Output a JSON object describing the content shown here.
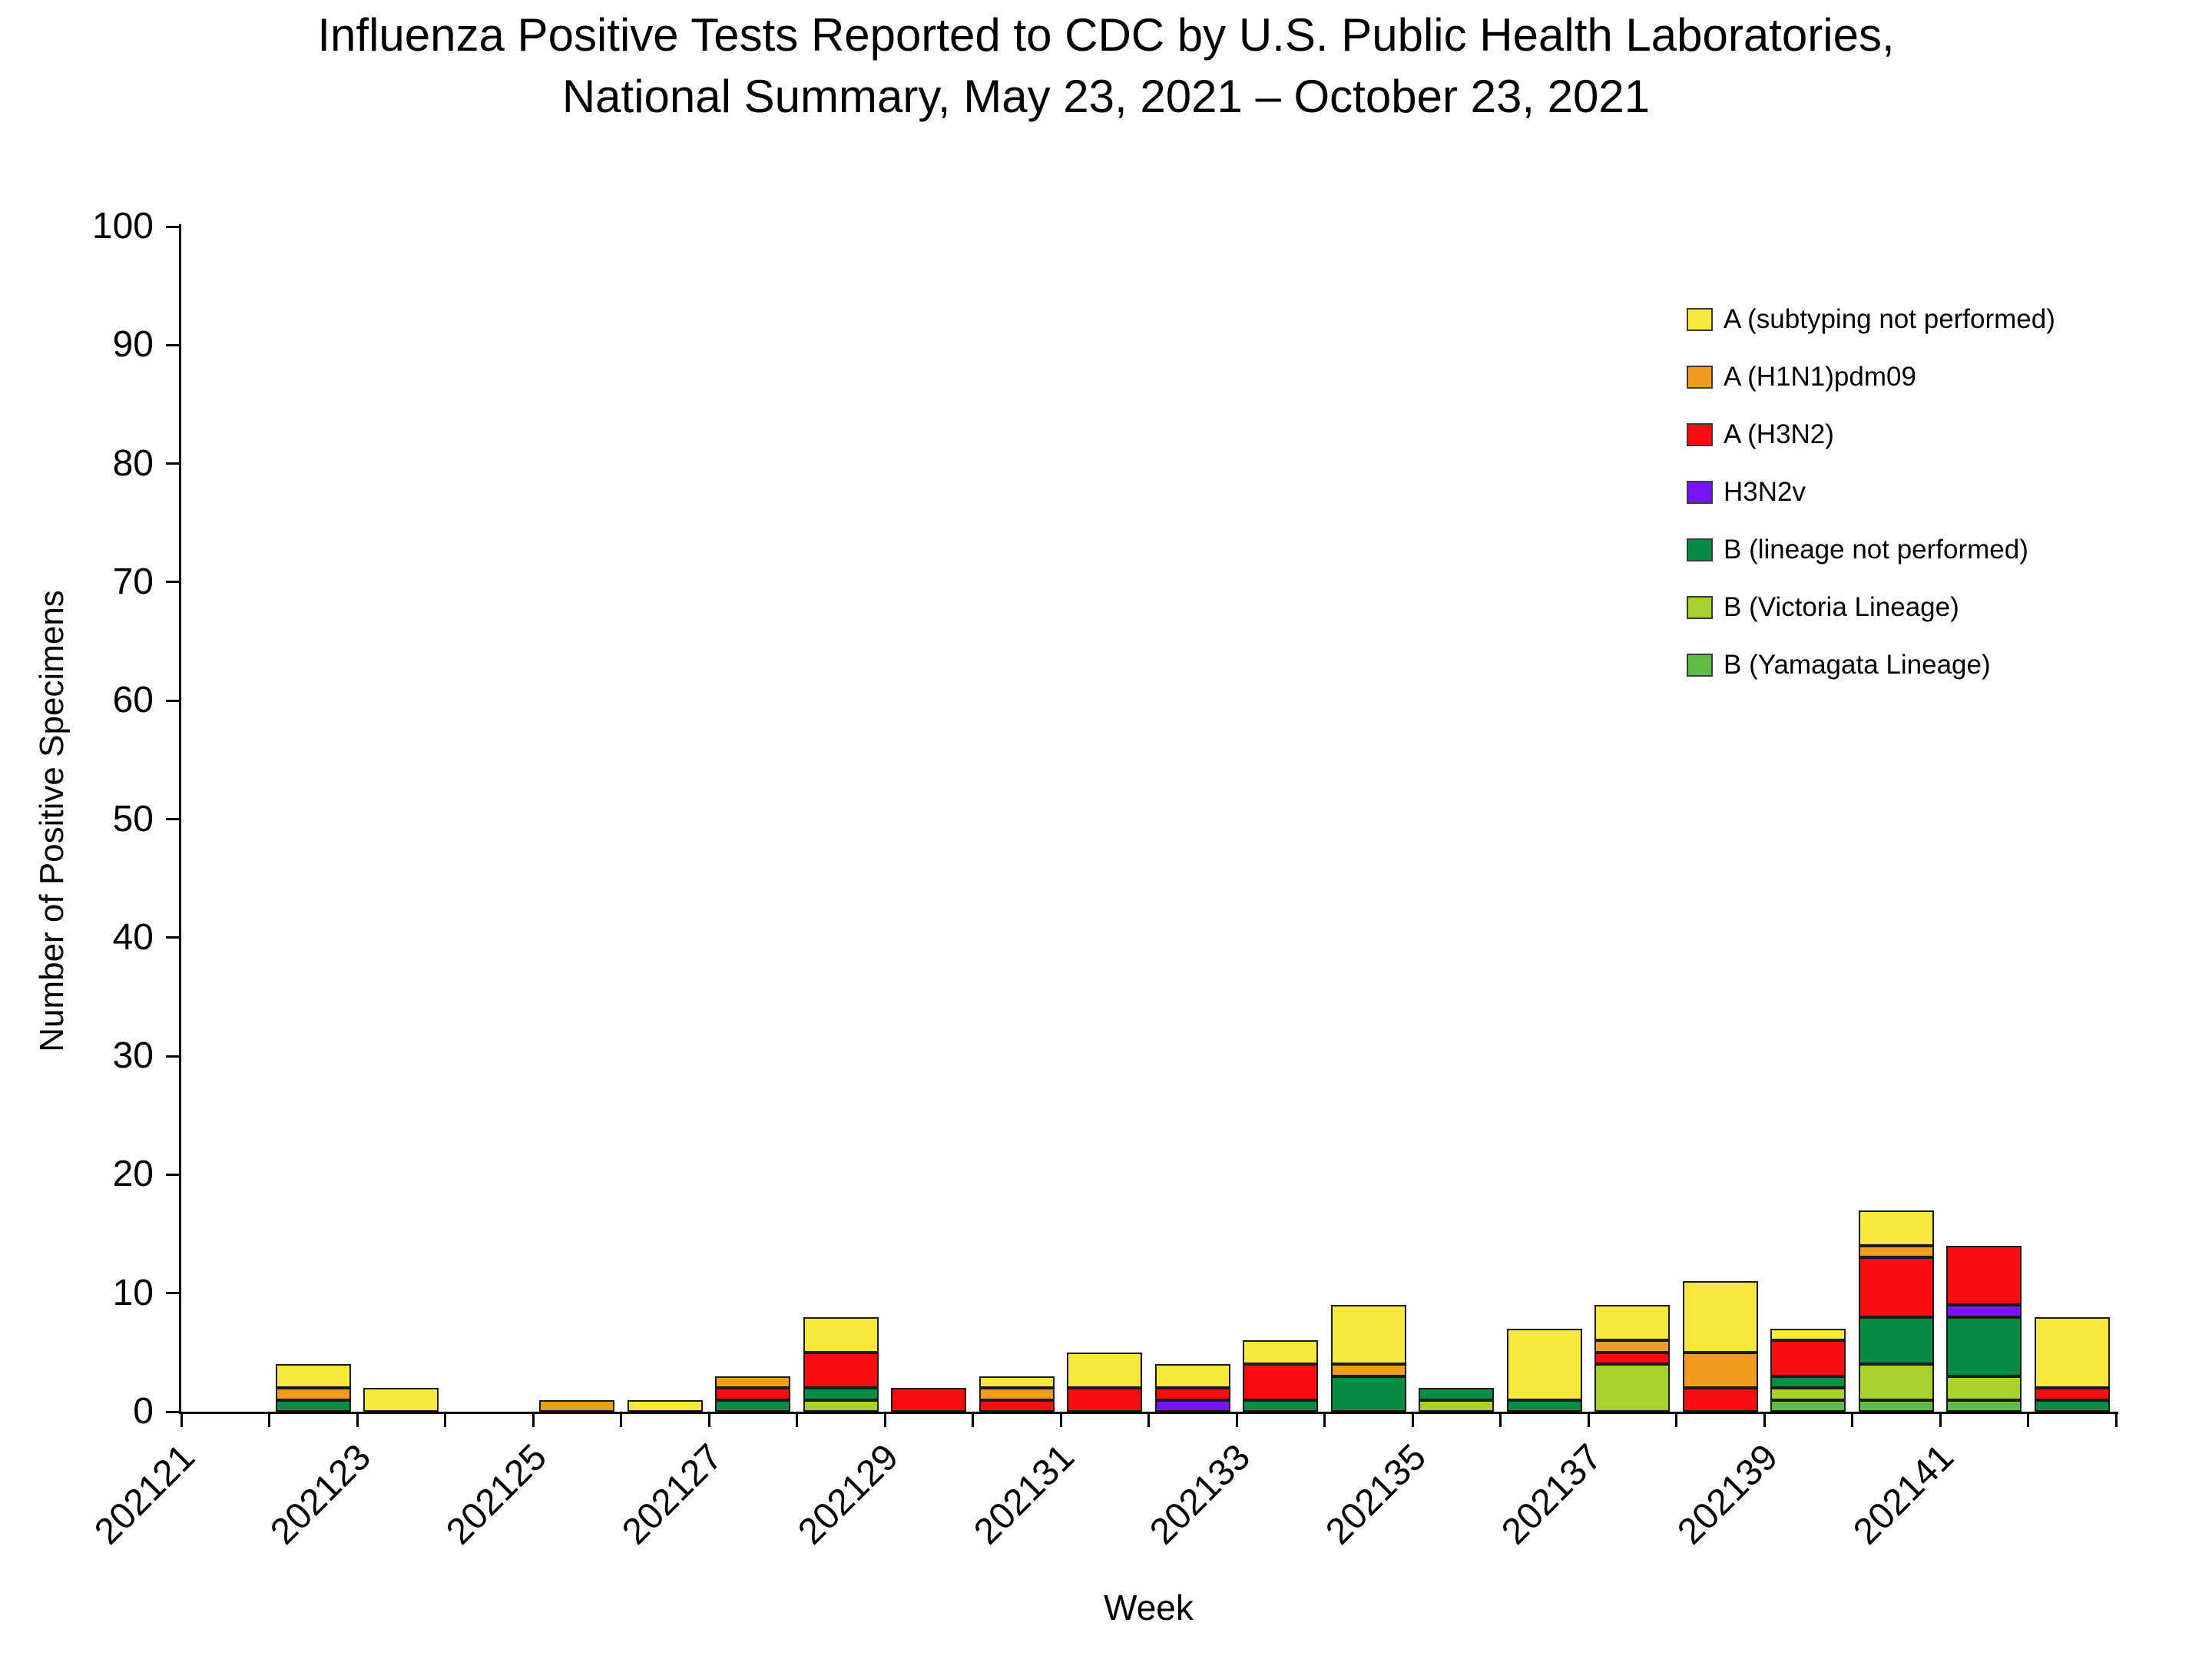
{
  "title": {
    "line1": "Influenza Positive Tests Reported to CDC by U.S. Public Health Laboratories,",
    "line2": "National Summary, May 23, 2021 – October 23, 2021"
  },
  "axes": {
    "y_label": "Number of Positive Specimens",
    "x_label": "Week",
    "y_ticks": [
      0,
      10,
      20,
      30,
      40,
      50,
      60,
      70,
      80,
      90,
      100
    ],
    "x_tick_labels": [
      "202121",
      "202123",
      "202125",
      "202127",
      "202129",
      "202131",
      "202133",
      "202135",
      "202137",
      "202139",
      "202141"
    ]
  },
  "legend": [
    {
      "label": "A (subtyping not performed)",
      "color": "#F7E83D"
    },
    {
      "label": "A (H1N1)pdm09",
      "color": "#F09C1E"
    },
    {
      "label": "A (H3N2)",
      "color": "#F90D11"
    },
    {
      "label": "H3N2v",
      "color": "#7814F9"
    },
    {
      "label": "B (lineage not performed)",
      "color": "#088B45"
    },
    {
      "label": "B (Victoria Lineage)",
      "color": "#A7D22D"
    },
    {
      "label": "B (Yamagata Lineage)",
      "color": "#61BC46"
    }
  ],
  "chart_data": {
    "type": "bar",
    "stacked": true,
    "title": "Influenza Positive Tests Reported to CDC by U.S. Public Health Laboratories, National Summary, May 23, 2021 – October 23, 2021",
    "xlabel": "Week",
    "ylabel": "Number of Positive Specimens",
    "ylim": [
      0,
      100
    ],
    "y_tick_step": 10,
    "grid": false,
    "legend_position": "upper right inside",
    "categories": [
      "202121",
      "202122",
      "202123",
      "202124",
      "202125",
      "202126",
      "202127",
      "202128",
      "202129",
      "202130",
      "202131",
      "202132",
      "202133",
      "202134",
      "202135",
      "202136",
      "202137",
      "202138",
      "202139",
      "202140",
      "202141",
      "202142"
    ],
    "series_stack_order": "bottom to top",
    "series": [
      {
        "name": "B (Yamagata Lineage)",
        "color": "#61BC46",
        "values": [
          0,
          0,
          0,
          0,
          0,
          0,
          0,
          0,
          0,
          0,
          0,
          0,
          0,
          0,
          0,
          0,
          0,
          0,
          1,
          1,
          1,
          0
        ]
      },
      {
        "name": "B (Victoria Lineage)",
        "color": "#A7D22D",
        "values": [
          0,
          0,
          0,
          0,
          0,
          0,
          0,
          1,
          0,
          0,
          0,
          0,
          0,
          0,
          1,
          0,
          4,
          0,
          1,
          3,
          2,
          0
        ]
      },
      {
        "name": "B (lineage not performed)",
        "color": "#088B45",
        "values": [
          0,
          1,
          0,
          0,
          0,
          0,
          1,
          1,
          0,
          0,
          0,
          0,
          1,
          3,
          1,
          1,
          0,
          0,
          1,
          4,
          5,
          1
        ]
      },
      {
        "name": "H3N2v",
        "color": "#7814F9",
        "values": [
          0,
          0,
          0,
          0,
          0,
          0,
          0,
          0,
          0,
          0,
          0,
          1,
          0,
          0,
          0,
          0,
          0,
          0,
          0,
          0,
          1,
          0
        ]
      },
      {
        "name": "A (H3N2)",
        "color": "#F90D11",
        "values": [
          0,
          0,
          0,
          0,
          0,
          0,
          1,
          3,
          2,
          1,
          2,
          1,
          3,
          0,
          0,
          0,
          1,
          2,
          3,
          5,
          5,
          1
        ]
      },
      {
        "name": "A (H1N1)pdm09",
        "color": "#F09C1E",
        "values": [
          0,
          1,
          0,
          0,
          1,
          0,
          1,
          0,
          0,
          1,
          0,
          0,
          0,
          1,
          0,
          0,
          1,
          3,
          0,
          1,
          0,
          0
        ]
      },
      {
        "name": "A (subtyping not performed)",
        "color": "#F7E83D",
        "values": [
          0,
          2,
          2,
          0,
          0,
          1,
          0,
          3,
          0,
          1,
          3,
          2,
          2,
          5,
          0,
          6,
          3,
          6,
          1,
          3,
          0,
          6
        ]
      }
    ],
    "totals": [
      0,
      4,
      2,
      0,
      1,
      1,
      3,
      8,
      2,
      3,
      5,
      4,
      6,
      9,
      2,
      7,
      9,
      11,
      7,
      17,
      14,
      8
    ]
  }
}
